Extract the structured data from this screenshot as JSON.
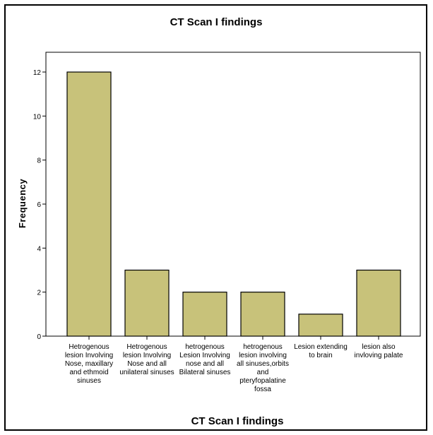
{
  "chart_data": {
    "type": "bar",
    "title": "CT Scan I findings",
    "xlabel": "CT Scan I findings",
    "ylabel": "Frequency",
    "ylim": [
      0,
      12
    ],
    "yticks": [
      0,
      2,
      4,
      6,
      8,
      10,
      12
    ],
    "categories": [
      [
        "Hetrogenous",
        "lesion Involving",
        "Nose, maxillary",
        "and ethmoid",
        "sinuses"
      ],
      [
        "Hetrogenous",
        "lesion Involving",
        "Nose and all",
        "unilateral sinuses"
      ],
      [
        "hetrogenous",
        "Lesion Involving",
        "nose and all",
        "Bilateral sinuses"
      ],
      [
        "hetrogenous",
        "lesion involving",
        "all sinuses,orbits",
        "and",
        "pteryfopalatine",
        "fossa"
      ],
      [
        "Lesion extending",
        "to brain"
      ],
      [
        "lesion also",
        "invloving palate"
      ]
    ],
    "values": [
      12,
      3,
      2,
      2,
      1,
      3
    ],
    "bar_color": "#c8c27a",
    "bar_edge_color": "#000000",
    "grid": false,
    "legend": "none"
  }
}
